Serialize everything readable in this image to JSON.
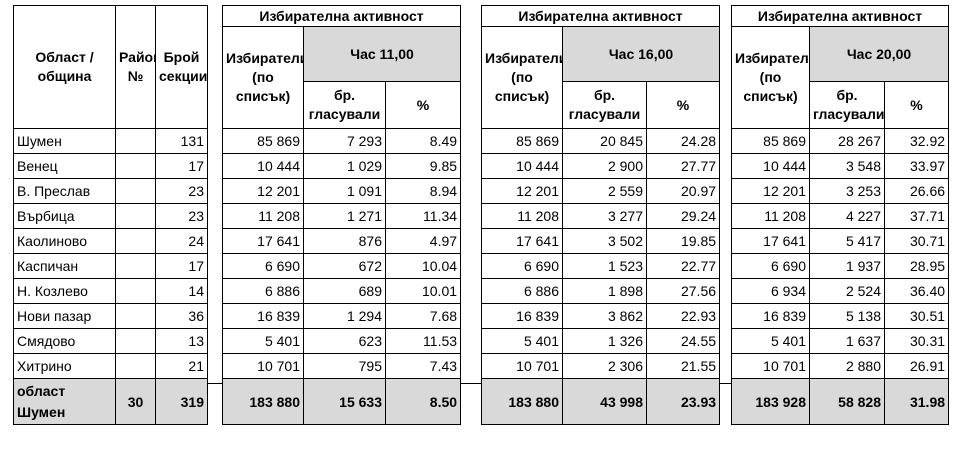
{
  "headers": {
    "region": "Област / община",
    "district": "Район №",
    "sections": "Брой секции",
    "activity": "Избирателна активност",
    "voters": "Избиратели (по списък)",
    "hour1": "Час 11,00",
    "hour2": "Час 16,00",
    "hour3": "Час 20,00",
    "voted": "бр. гласували",
    "pct": "%"
  },
  "rows": [
    {
      "name": "Шумен",
      "district": "",
      "sections": "131",
      "v1": "85 869",
      "g1": "7 293",
      "p1": "8.49",
      "v2": "85 869",
      "g2": "20 845",
      "p2": "24.28",
      "v3": "85 869",
      "g3": "28 267",
      "p3": "32.92"
    },
    {
      "name": "Венец",
      "district": "",
      "sections": "17",
      "v1": "10 444",
      "g1": "1 029",
      "p1": "9.85",
      "v2": "10 444",
      "g2": "2 900",
      "p2": "27.77",
      "v3": "10 444",
      "g3": "3 548",
      "p3": "33.97"
    },
    {
      "name": "В. Преслав",
      "district": "",
      "sections": "23",
      "v1": "12 201",
      "g1": "1 091",
      "p1": "8.94",
      "v2": "12 201",
      "g2": "2 559",
      "p2": "20.97",
      "v3": "12 201",
      "g3": "3 253",
      "p3": "26.66"
    },
    {
      "name": "Върбица",
      "district": "",
      "sections": "23",
      "v1": "11 208",
      "g1": "1 271",
      "p1": "11.34",
      "v2": "11 208",
      "g2": "3 277",
      "p2": "29.24",
      "v3": "11 208",
      "g3": "4 227",
      "p3": "37.71"
    },
    {
      "name": "Каолиново",
      "district": "",
      "sections": "24",
      "v1": "17 641",
      "g1": "876",
      "p1": "4.97",
      "v2": "17 641",
      "g2": "3 502",
      "p2": "19.85",
      "v3": "17 641",
      "g3": "5 417",
      "p3": "30.71"
    },
    {
      "name": "Каспичан",
      "district": "",
      "sections": "17",
      "v1": "6 690",
      "g1": "672",
      "p1": "10.04",
      "v2": "6 690",
      "g2": "1 523",
      "p2": "22.77",
      "v3": "6 690",
      "g3": "1 937",
      "p3": "28.95"
    },
    {
      "name": "Н. Козлево",
      "district": "",
      "sections": "14",
      "v1": "6 886",
      "g1": "689",
      "p1": "10.01",
      "v2": "6 886",
      "g2": "1 898",
      "p2": "27.56",
      "v3": "6 934",
      "g3": "2 524",
      "p3": "36.40"
    },
    {
      "name": "Нови пазар",
      "district": "",
      "sections": "36",
      "v1": "16 839",
      "g1": "1 294",
      "p1": "7.68",
      "v2": "16 839",
      "g2": "3 862",
      "p2": "22.93",
      "v3": "16 839",
      "g3": "5 138",
      "p3": "30.51"
    },
    {
      "name": "Смядово",
      "district": "",
      "sections": "13",
      "v1": "5 401",
      "g1": "623",
      "p1": "11.53",
      "v2": "5 401",
      "g2": "1 326",
      "p2": "24.55",
      "v3": "5 401",
      "g3": "1 637",
      "p3": "30.31"
    },
    {
      "name": "Хитрино",
      "district": "",
      "sections": "21",
      "v1": "10 701",
      "g1": "795",
      "p1": "7.43",
      "v2": "10 701",
      "g2": "2 306",
      "p2": "21.55",
      "v3": "10 701",
      "g3": "2 880",
      "p3": "26.91"
    }
  ],
  "total": {
    "name": "област Шумен",
    "district": "30",
    "sections": "319",
    "v1": "183 880",
    "g1": "15 633",
    "p1": "8.50",
    "v2": "183 880",
    "g2": "43 998",
    "p2": "23.93",
    "v3": "183 928",
    "g3": "58 828",
    "p3": "31.98"
  }
}
